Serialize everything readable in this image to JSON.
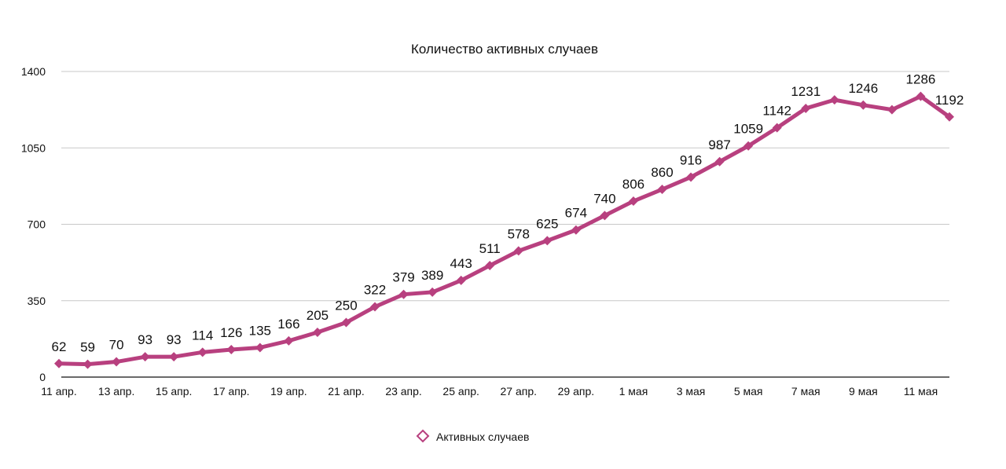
{
  "chart_data": {
    "type": "line",
    "title": "Количество активных случаев",
    "xlabel": "",
    "ylabel": "",
    "ylim": [
      0,
      1400
    ],
    "yticks": [
      0,
      350,
      700,
      1050,
      1400
    ],
    "grid": true,
    "legend_position": "bottom",
    "x_tick_labels": [
      "11 апр.",
      "13 апр.",
      "15 апр.",
      "17 апр.",
      "19 апр.",
      "21 апр.",
      "23 апр.",
      "25 апр.",
      "27 апр.",
      "29 апр.",
      "1 мая",
      "3 мая",
      "5 мая",
      "7 мая",
      "9 мая",
      "11 мая"
    ],
    "series": [
      {
        "name": "Активных случаев",
        "color": "#b8407f",
        "values": [
          62,
          59,
          70,
          93,
          93,
          114,
          126,
          135,
          166,
          205,
          250,
          322,
          379,
          389,
          443,
          511,
          578,
          625,
          674,
          740,
          806,
          860,
          916,
          987,
          1059,
          1142,
          1231,
          1270,
          1246,
          1225,
          1286,
          1192
        ],
        "data_labels": [
          "62",
          "59",
          "70",
          "93",
          "93",
          "114",
          "126",
          "135",
          "166",
          "205",
          "250",
          "322",
          "379",
          "389",
          "443",
          "511",
          "578",
          "625",
          "674",
          "740",
          "806",
          "860",
          "916",
          "987",
          "1059",
          "1142",
          "1231",
          "",
          "1246",
          "",
          "1286",
          "1192"
        ]
      }
    ]
  }
}
